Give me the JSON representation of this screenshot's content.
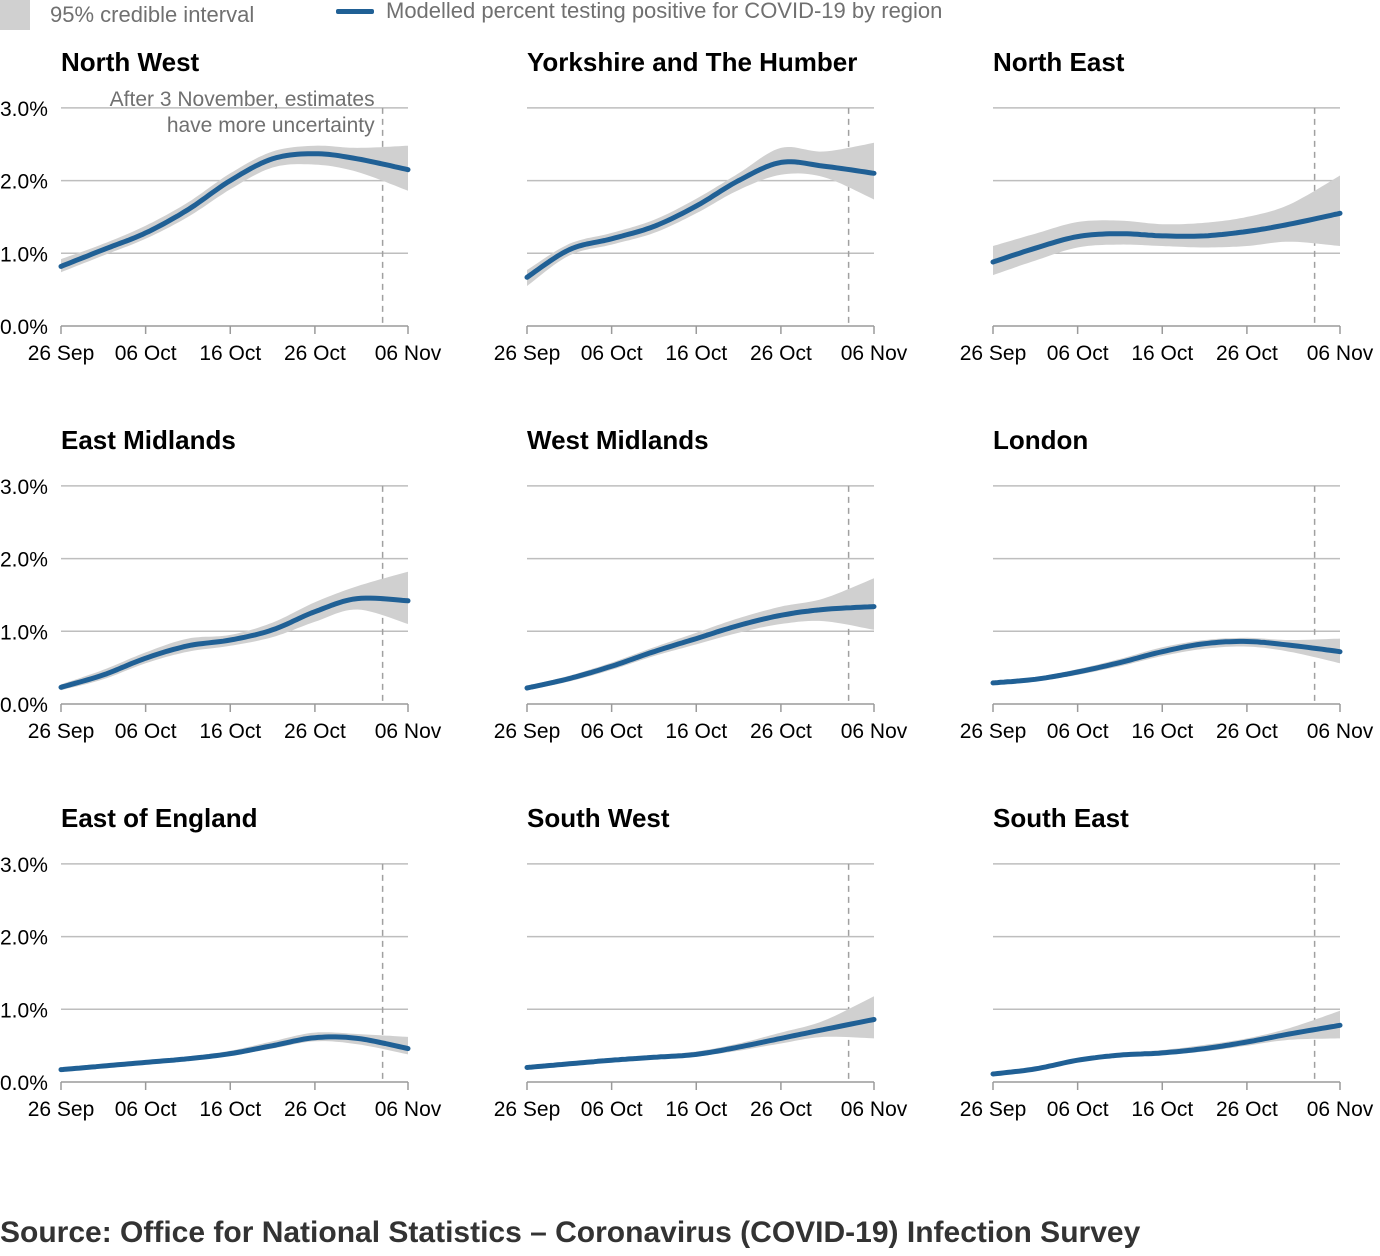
{
  "legend": {
    "interval_label": "95% credible interval",
    "line_label": "Modelled percent testing positive for COVID-19 by region"
  },
  "annotation": {
    "line1": "After 3 November, estimates",
    "line2": "have more uncertainty"
  },
  "source": "Source: Office for National Statistics – Coronavirus (COVID-19) Infection Survey",
  "colors": {
    "line": "#206095",
    "band": "#d0d0d0",
    "grid": "#bebebe",
    "marker": "#a0a0a0",
    "text": "#000000",
    "muted": "#707070"
  },
  "chart_data": {
    "type": "line",
    "y_tick_labels": [
      "0.0%",
      "1.0%",
      "2.0%",
      "3.0%"
    ],
    "x_tick_labels": [
      "26 Sep",
      "06 Oct",
      "16 Oct",
      "26 Oct",
      "06 Nov"
    ],
    "x_tick_days": [
      0,
      10,
      20,
      30,
      41
    ],
    "x_range_days": [
      0,
      41
    ],
    "ylim": [
      0,
      3.0
    ],
    "marker_day": 38,
    "marker_label": "3 November",
    "panels": [
      {
        "region": "North West",
        "x": [
          0,
          5,
          10,
          15,
          20,
          25,
          30,
          35,
          41
        ],
        "y": [
          0.82,
          1.05,
          1.28,
          1.6,
          2.0,
          2.3,
          2.37,
          2.3,
          2.15
        ],
        "lower": [
          0.74,
          0.97,
          1.2,
          1.5,
          1.88,
          2.18,
          2.22,
          2.12,
          1.86
        ],
        "upper": [
          0.92,
          1.13,
          1.38,
          1.7,
          2.1,
          2.4,
          2.48,
          2.45,
          2.48
        ]
      },
      {
        "region": "Yorkshire and The Humber",
        "x": [
          0,
          5,
          10,
          15,
          20,
          25,
          30,
          35,
          41
        ],
        "y": [
          0.67,
          1.05,
          1.2,
          1.37,
          1.65,
          2.0,
          2.25,
          2.2,
          2.1
        ],
        "lower": [
          0.55,
          0.97,
          1.12,
          1.28,
          1.55,
          1.87,
          2.08,
          2.05,
          1.74
        ],
        "upper": [
          0.77,
          1.13,
          1.28,
          1.46,
          1.75,
          2.1,
          2.45,
          2.4,
          2.52
        ]
      },
      {
        "region": "North East",
        "x": [
          0,
          5,
          10,
          15,
          20,
          25,
          30,
          35,
          41
        ],
        "y": [
          0.88,
          1.07,
          1.23,
          1.27,
          1.24,
          1.24,
          1.3,
          1.4,
          1.55
        ],
        "lower": [
          0.7,
          0.9,
          1.08,
          1.12,
          1.1,
          1.08,
          1.1,
          1.16,
          1.1
        ],
        "upper": [
          1.1,
          1.27,
          1.43,
          1.45,
          1.4,
          1.42,
          1.5,
          1.67,
          2.07
        ]
      },
      {
        "region": "East Midlands",
        "x": [
          0,
          5,
          10,
          15,
          20,
          25,
          30,
          35,
          41
        ],
        "y": [
          0.23,
          0.4,
          0.63,
          0.8,
          0.88,
          1.02,
          1.27,
          1.45,
          1.42
        ],
        "lower": [
          0.19,
          0.34,
          0.56,
          0.72,
          0.8,
          0.92,
          1.13,
          1.3,
          1.1
        ],
        "upper": [
          0.27,
          0.47,
          0.71,
          0.9,
          0.95,
          1.12,
          1.4,
          1.62,
          1.82
        ]
      },
      {
        "region": "West Midlands",
        "x": [
          0,
          5,
          10,
          15,
          20,
          25,
          30,
          35,
          41
        ],
        "y": [
          0.22,
          0.35,
          0.52,
          0.72,
          0.9,
          1.08,
          1.22,
          1.3,
          1.34
        ],
        "lower": [
          0.19,
          0.31,
          0.47,
          0.66,
          0.82,
          0.98,
          1.1,
          1.14,
          1.02
        ],
        "upper": [
          0.25,
          0.39,
          0.57,
          0.78,
          0.98,
          1.18,
          1.34,
          1.45,
          1.73
        ]
      },
      {
        "region": "London",
        "x": [
          0,
          5,
          10,
          15,
          20,
          25,
          30,
          35,
          41
        ],
        "y": [
          0.29,
          0.34,
          0.44,
          0.57,
          0.72,
          0.83,
          0.86,
          0.81,
          0.72
        ],
        "lower": [
          0.26,
          0.31,
          0.4,
          0.52,
          0.66,
          0.76,
          0.79,
          0.72,
          0.56
        ],
        "upper": [
          0.32,
          0.37,
          0.48,
          0.62,
          0.78,
          0.88,
          0.91,
          0.88,
          0.9
        ]
      },
      {
        "region": "East of England",
        "x": [
          0,
          5,
          10,
          15,
          20,
          25,
          30,
          35,
          41
        ],
        "y": [
          0.17,
          0.22,
          0.27,
          0.32,
          0.39,
          0.5,
          0.61,
          0.6,
          0.46
        ],
        "lower": [
          0.15,
          0.2,
          0.25,
          0.3,
          0.36,
          0.46,
          0.56,
          0.52,
          0.38
        ],
        "upper": [
          0.19,
          0.24,
          0.3,
          0.35,
          0.43,
          0.56,
          0.68,
          0.66,
          0.62
        ]
      },
      {
        "region": "South West",
        "x": [
          0,
          5,
          10,
          15,
          20,
          25,
          30,
          35,
          41
        ],
        "y": [
          0.2,
          0.25,
          0.3,
          0.34,
          0.38,
          0.48,
          0.6,
          0.72,
          0.86
        ],
        "lower": [
          0.18,
          0.22,
          0.27,
          0.31,
          0.35,
          0.43,
          0.53,
          0.62,
          0.6
        ],
        "upper": [
          0.23,
          0.28,
          0.33,
          0.37,
          0.42,
          0.53,
          0.68,
          0.84,
          1.18
        ]
      },
      {
        "region": "South East",
        "x": [
          0,
          5,
          10,
          15,
          20,
          25,
          30,
          35,
          41
        ],
        "y": [
          0.11,
          0.18,
          0.3,
          0.37,
          0.4,
          0.46,
          0.55,
          0.66,
          0.78
        ],
        "lower": [
          0.09,
          0.16,
          0.27,
          0.34,
          0.37,
          0.42,
          0.5,
          0.58,
          0.6
        ],
        "upper": [
          0.13,
          0.21,
          0.33,
          0.4,
          0.44,
          0.51,
          0.6,
          0.74,
          0.98
        ]
      }
    ]
  }
}
